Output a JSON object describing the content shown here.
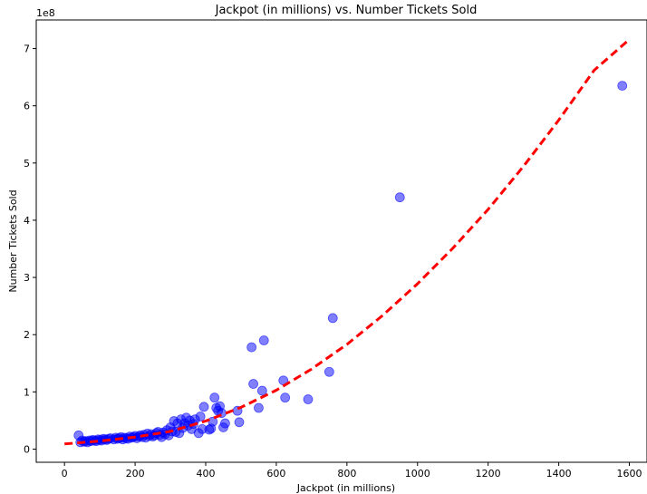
{
  "chart_data": {
    "type": "scatter",
    "title": "Jackpot (in millions) vs. Number Tickets Sold",
    "xlabel": "Jackpot (in millions)",
    "ylabel": "Number Tickets Sold",
    "y_offset_label": "1e8",
    "y_scale_factor": 100000000,
    "xlim": [
      -80,
      1650
    ],
    "ylim": [
      -0.23,
      7.5
    ],
    "x_ticks": [
      0,
      200,
      400,
      600,
      800,
      1000,
      1200,
      1400,
      1600
    ],
    "y_ticks": [
      0,
      1,
      2,
      3,
      4,
      5,
      6,
      7
    ],
    "grid": false,
    "colors": {
      "points": "#0000ff",
      "fit": "#ff0000"
    },
    "series": [
      {
        "kind": "scatter",
        "x": [
          40,
          45,
          50,
          55,
          60,
          65,
          70,
          75,
          80,
          85,
          90,
          95,
          100,
          105,
          110,
          115,
          120,
          125,
          130,
          140,
          145,
          150,
          155,
          160,
          165,
          170,
          175,
          180,
          185,
          190,
          195,
          200,
          205,
          210,
          215,
          220,
          225,
          230,
          235,
          240,
          245,
          250,
          255,
          260,
          265,
          270,
          275,
          280,
          285,
          290,
          295,
          300,
          305,
          310,
          315,
          320,
          325,
          330,
          335,
          340,
          345,
          350,
          355,
          360,
          365,
          370,
          380,
          385,
          390,
          395,
          410,
          415,
          420,
          425,
          430,
          435,
          440,
          445,
          450,
          455,
          490,
          495,
          530,
          535,
          550,
          560,
          565,
          620,
          625,
          690,
          750,
          760,
          950,
          1580
        ],
        "y": [
          0.24,
          0.12,
          0.15,
          0.13,
          0.14,
          0.12,
          0.15,
          0.14,
          0.16,
          0.15,
          0.14,
          0.17,
          0.16,
          0.15,
          0.18,
          0.17,
          0.16,
          0.18,
          0.19,
          0.17,
          0.2,
          0.18,
          0.19,
          0.21,
          0.17,
          0.2,
          0.19,
          0.18,
          0.22,
          0.2,
          0.21,
          0.23,
          0.19,
          0.22,
          0.24,
          0.21,
          0.25,
          0.2,
          0.27,
          0.23,
          0.26,
          0.22,
          0.24,
          0.28,
          0.3,
          0.25,
          0.21,
          0.29,
          0.26,
          0.33,
          0.24,
          0.38,
          0.31,
          0.49,
          0.3,
          0.45,
          0.28,
          0.52,
          0.37,
          0.45,
          0.55,
          0.41,
          0.5,
          0.35,
          0.44,
          0.52,
          0.28,
          0.57,
          0.35,
          0.74,
          0.34,
          0.36,
          0.48,
          0.9,
          0.72,
          0.67,
          0.75,
          0.63,
          0.38,
          0.45,
          0.67,
          0.47,
          1.78,
          1.14,
          0.72,
          1.02,
          1.9,
          1.2,
          0.9,
          0.87,
          1.35,
          2.29,
          4.4,
          6.35
        ]
      },
      {
        "kind": "fit",
        "style": "dashed",
        "x": [
          0,
          100,
          200,
          300,
          400,
          500,
          600,
          700,
          800,
          900,
          1000,
          1100,
          1200,
          1300,
          1400,
          1500,
          1600
        ],
        "y": [
          0.09,
          0.14,
          0.21,
          0.31,
          0.49,
          0.73,
          1.03,
          1.4,
          1.83,
          2.33,
          2.89,
          3.51,
          4.19,
          4.94,
          5.75,
          6.62,
          7.16
        ]
      }
    ]
  }
}
